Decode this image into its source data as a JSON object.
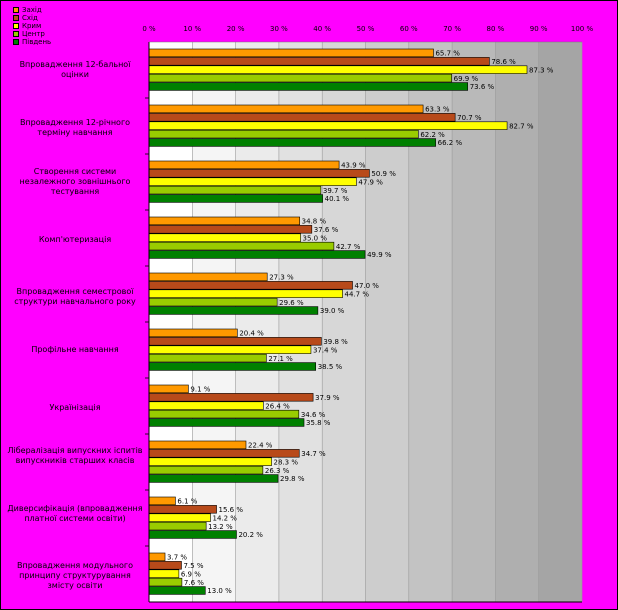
{
  "chart_data": {
    "type": "bar",
    "orientation": "horizontal",
    "xlim": [
      0,
      100
    ],
    "ticks": [
      "0 %",
      "10 %",
      "20 %",
      "30 %",
      "40 %",
      "50 %",
      "60 %",
      "70 %",
      "80 %",
      "90 %",
      "100 %"
    ],
    "legend_position": "top-left",
    "categories": [
      "Впровадження 12-бальної оцінки",
      "Впровадження 12-річного терміну навчання",
      "Створення системи незалежного зовнішнього тестування",
      "Комп'ютеризація",
      "Впровадження семестрової структури навчального року",
      "Профільне навчання",
      "Українізація",
      "Лібералізація випускних іспитів випускників старших класів",
      "Диверсифікація (впровадження платної системи освіти)",
      "Впровадження модульного принципу структурування змісту освіти"
    ],
    "series": [
      {
        "name": "Захід",
        "color": "#ff9900",
        "values": [
          65.7,
          63.3,
          43.9,
          34.8,
          27.3,
          20.4,
          9.1,
          22.4,
          6.1,
          3.7
        ]
      },
      {
        "name": "Схід",
        "color": "#b84a1a",
        "values": [
          78.6,
          70.7,
          50.9,
          37.6,
          47.0,
          39.8,
          37.9,
          34.7,
          15.6,
          7.5
        ]
      },
      {
        "name": "Крим",
        "color": "#ffff00",
        "values": [
          87.3,
          82.7,
          47.9,
          35.0,
          44.7,
          37.4,
          26.4,
          28.3,
          14.2,
          6.9
        ]
      },
      {
        "name": "Центр",
        "color": "#99cc00",
        "values": [
          69.9,
          62.2,
          39.7,
          42.7,
          29.6,
          27.1,
          34.6,
          26.3,
          13.2,
          7.6
        ]
      },
      {
        "name": "Південь",
        "color": "#008000",
        "values": [
          73.6,
          66.2,
          40.1,
          49.9,
          39.0,
          38.5,
          35.8,
          29.8,
          20.2,
          13.0
        ]
      }
    ]
  }
}
